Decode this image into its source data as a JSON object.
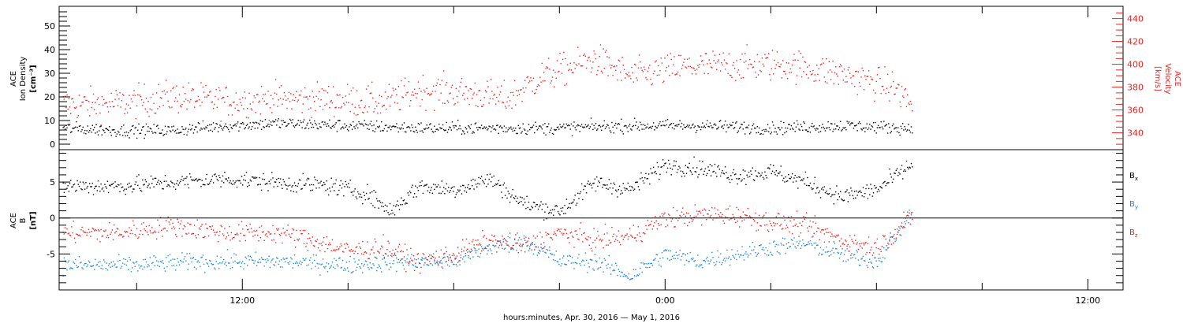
{
  "colors": {
    "black": "#000000",
    "red": "#e8231f",
    "blue": "#1a86d8",
    "axis": "#000000"
  },
  "x_axis": {
    "label": "hours:minutes, Apr. 30, 2016 — May  1, 2016",
    "ticks": [
      {
        "hour": -12,
        "label": "12:00"
      },
      {
        "hour": 0,
        "label": "0:00"
      },
      {
        "hour": 12,
        "label": "12:00"
      }
    ],
    "range_hours": [
      -17.2,
      13.0
    ],
    "data_end_hour": 7.0
  },
  "chart_data": [
    {
      "type": "scatter",
      "panel": "top",
      "left_axis": {
        "label_lines": [
          "ACE",
          "Ion Density",
          "[cm⁻³]"
        ],
        "range": [
          -1,
          57
        ],
        "ticks": [
          0,
          10,
          20,
          30,
          40,
          50
        ],
        "color": "#000000"
      },
      "right_axis": {
        "label_lines": [
          "ACE",
          "Velocity",
          "[km/s]"
        ],
        "range": [
          328,
          448
        ],
        "ticks": [
          340,
          360,
          380,
          400,
          420,
          440
        ],
        "color": "#e8231f"
      },
      "series": [
        {
          "axis": "left",
          "color": "#000000",
          "x": [
            -17.0,
            -15.5,
            -14.0,
            -12.5,
            -11.0,
            -9.0,
            -7.0,
            -5.0,
            -3.0,
            -1.0,
            1.0,
            3.0,
            5.0,
            7.0
          ],
          "y": [
            7,
            6,
            6,
            8,
            9,
            8,
            7,
            7,
            7,
            8,
            8,
            7,
            8,
            7
          ]
        },
        {
          "axis": "right",
          "color": "#e8231f",
          "x": [
            -17.0,
            -15.5,
            -14.0,
            -12.5,
            -11.0,
            -9.5,
            -8.0,
            -7.0,
            -5.5,
            -4.5,
            -3.5,
            -2.0,
            -1.0,
            0.5,
            2.0,
            3.5,
            5.0,
            6.5,
            7.0
          ],
          "y": [
            365,
            366,
            372,
            368,
            370,
            370,
            367,
            378,
            375,
            370,
            390,
            405,
            390,
            398,
            400,
            400,
            392,
            380,
            365
          ]
        }
      ]
    },
    {
      "type": "scatter",
      "panel": "bottom",
      "left_axis": {
        "label_lines": [
          "ACE",
          "B",
          "[nT]"
        ],
        "range": [
          -10,
          9.5
        ],
        "ticks": [
          -5,
          0,
          5
        ],
        "color": "#000000"
      },
      "zero_line": true,
      "legend": [
        "Bx",
        "By",
        "Bz"
      ],
      "legend_placement": "right",
      "series": [
        {
          "name": "Bx",
          "color": "#000000",
          "x": [
            -17.0,
            -15.5,
            -14.0,
            -12.5,
            -11.0,
            -9.5,
            -8.5,
            -7.8,
            -7.0,
            -6.0,
            -5.0,
            -4.0,
            -3.0,
            -2.0,
            -1.0,
            0.0,
            1.0,
            2.0,
            3.0,
            4.0,
            5.0,
            6.0,
            7.0
          ],
          "y": [
            4.5,
            4.5,
            5.0,
            5.5,
            5.0,
            4.5,
            3.5,
            1.0,
            4.5,
            4.0,
            5.5,
            2.0,
            1.0,
            5.0,
            4.0,
            7.5,
            7.0,
            6.0,
            6.5,
            5.0,
            3.0,
            4.0,
            7.5
          ]
        },
        {
          "name": "By",
          "color": "#1a86d8",
          "x": [
            -17.0,
            -15.0,
            -13.5,
            -12.0,
            -10.5,
            -9.0,
            -7.5,
            -6.0,
            -5.0,
            -4.0,
            -3.0,
            -2.0,
            -1.0,
            0.0,
            1.0,
            2.0,
            3.0,
            4.0,
            5.0,
            6.0,
            7.0
          ],
          "y": [
            -6.5,
            -6.5,
            -6.0,
            -6.0,
            -6.0,
            -6.5,
            -6.0,
            -6.0,
            -4.0,
            -3.0,
            -6.0,
            -6.0,
            -8.0,
            -5.0,
            -6.0,
            -5.0,
            -4.0,
            -3.5,
            -5.0,
            -6.0,
            1.0
          ]
        },
        {
          "name": "Bz",
          "color": "#e8231f",
          "x": [
            -17.0,
            -15.5,
            -14.0,
            -12.5,
            -11.0,
            -10.0,
            -9.0,
            -8.0,
            -7.0,
            -6.0,
            -5.0,
            -4.0,
            -3.0,
            -2.0,
            -1.0,
            0.0,
            1.0,
            2.0,
            3.0,
            4.0,
            5.0,
            6.0,
            7.0
          ],
          "y": [
            -2.0,
            -2.0,
            -1.0,
            -2.0,
            -2.0,
            -3.0,
            -4.5,
            -4.0,
            -6.0,
            -5.0,
            -3.0,
            -4.0,
            -2.0,
            -3.0,
            -2.5,
            0.0,
            0.5,
            0.5,
            -0.5,
            -1.0,
            -3.0,
            -4.0,
            0.0
          ]
        }
      ]
    }
  ]
}
